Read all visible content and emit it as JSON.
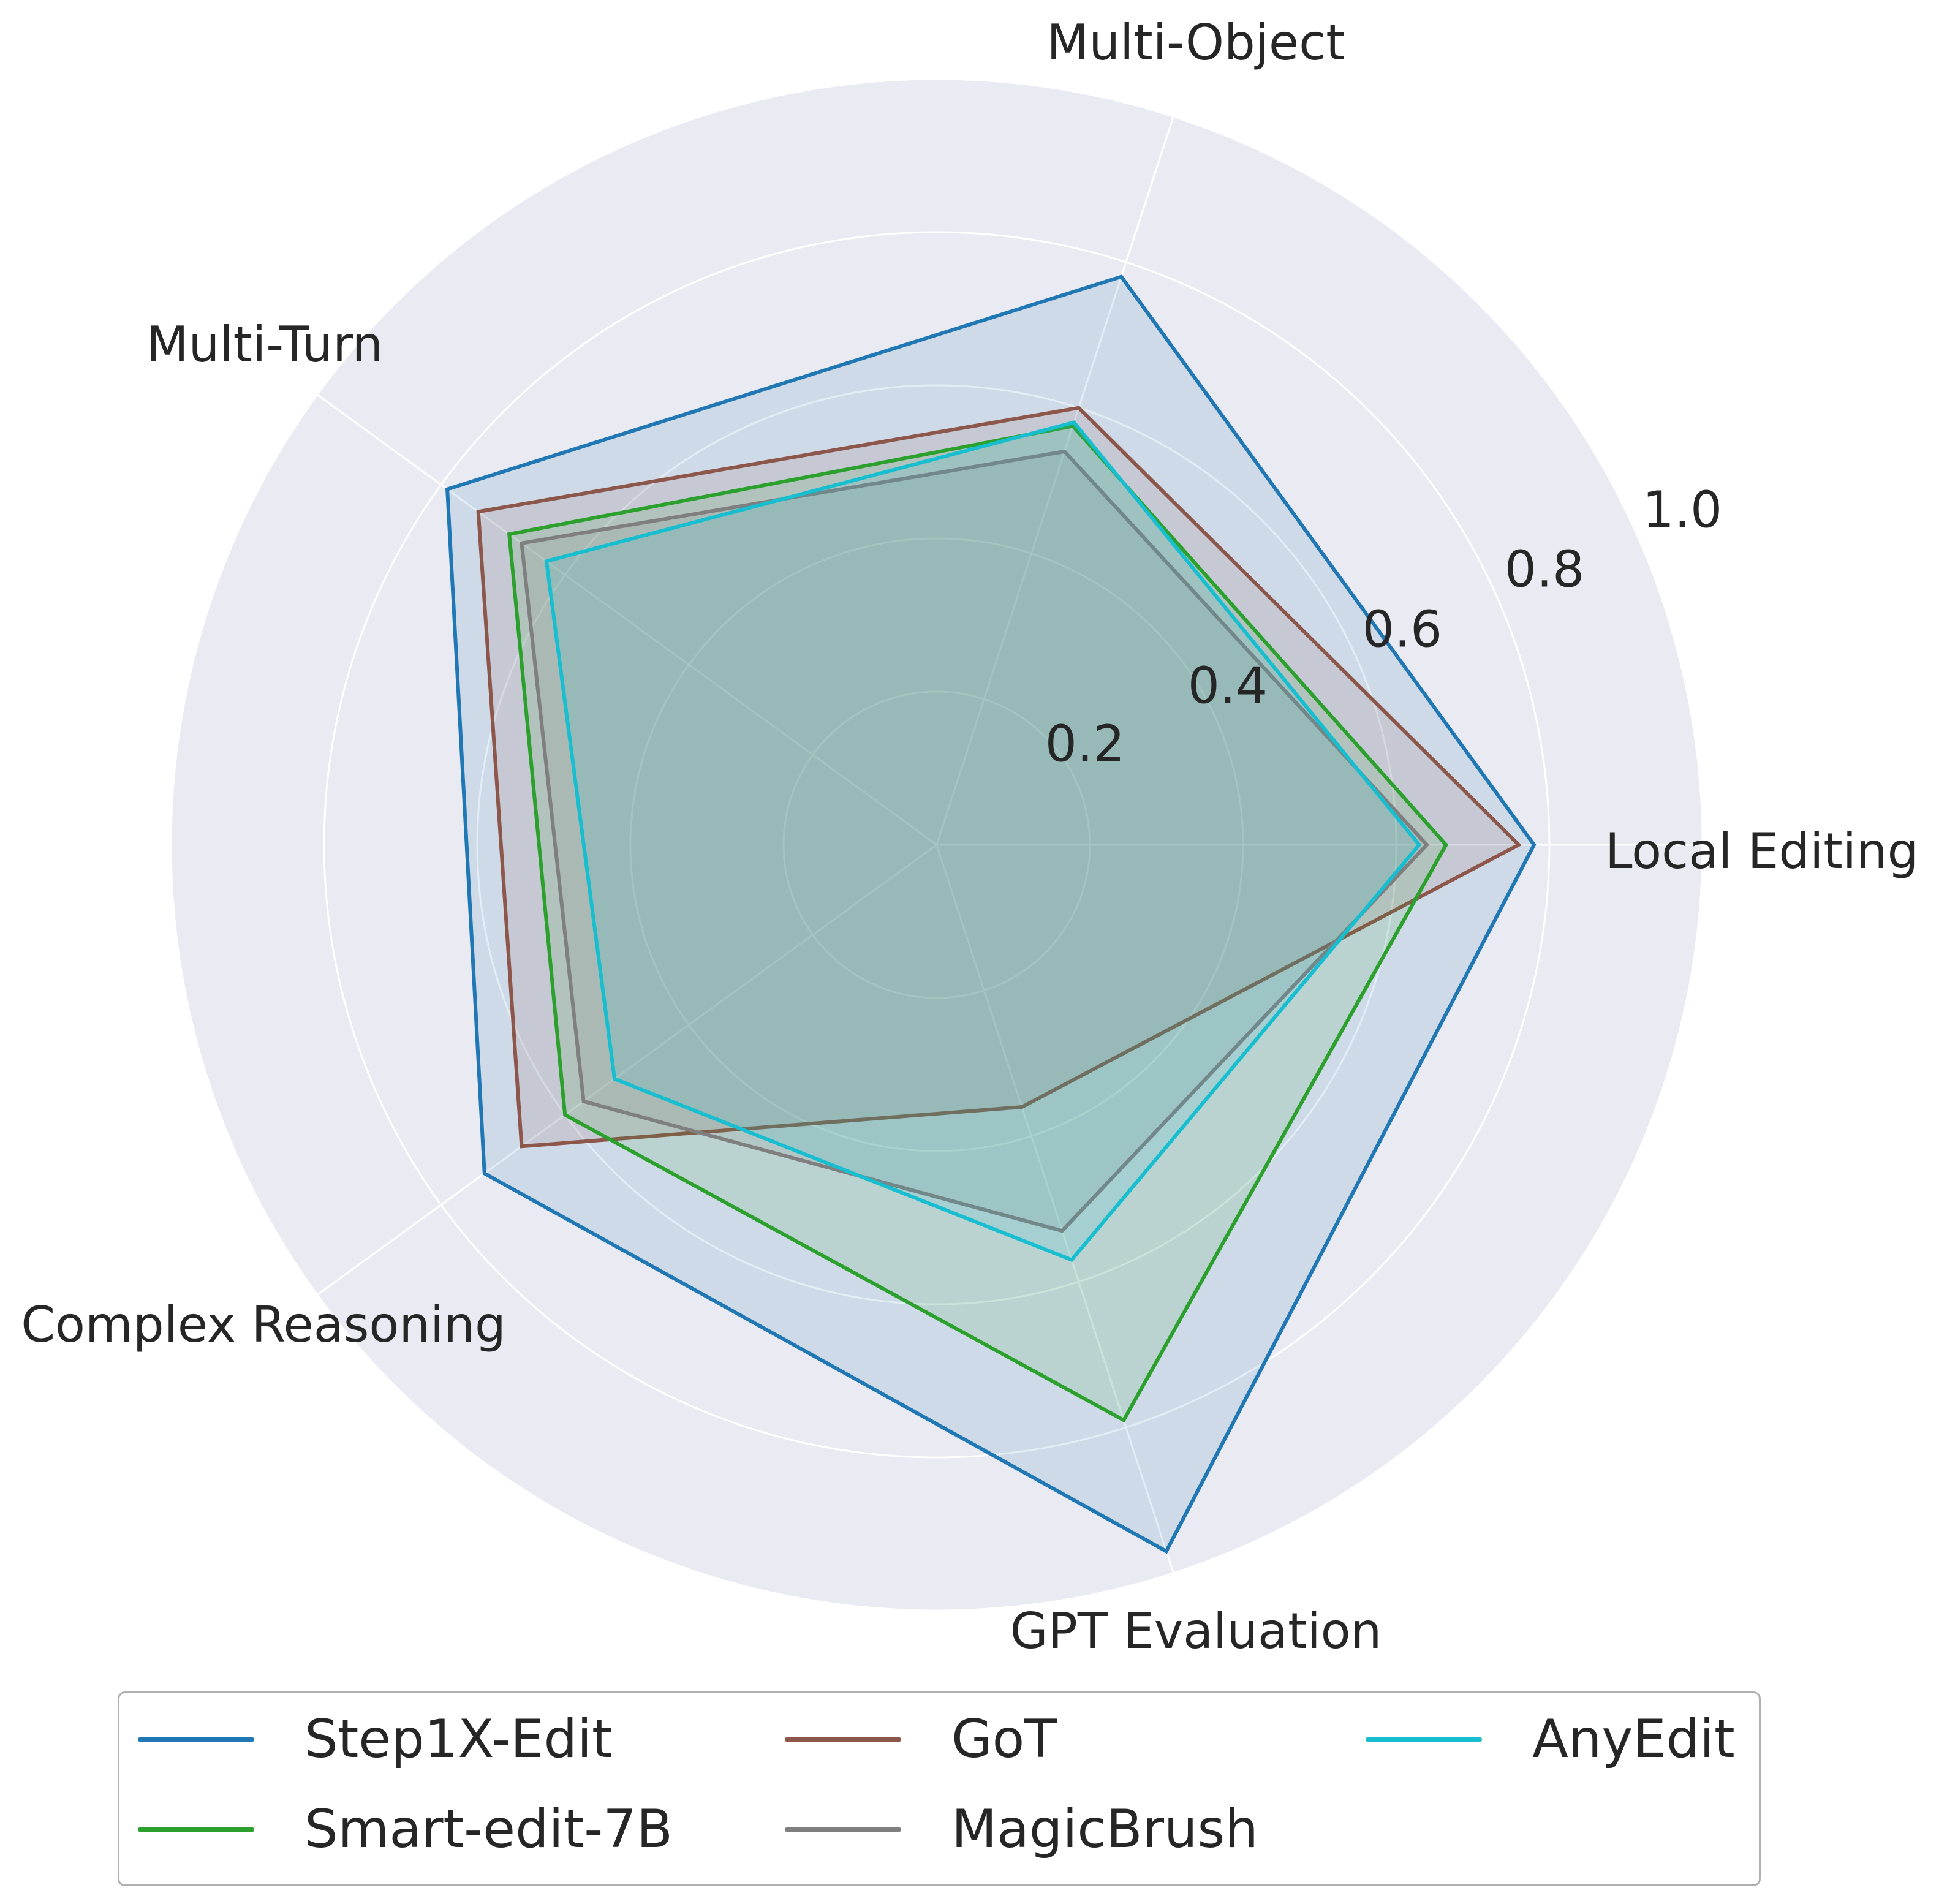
{
  "chart_data": {
    "type": "radar",
    "axes": [
      "Local Editing",
      "Multi-Object",
      "Multi-Turn",
      "Complex Reasoning",
      "GPT Evaluation"
    ],
    "rlim": [
      0,
      1.0
    ],
    "rticks": [
      0.2,
      0.4,
      0.6,
      0.8,
      1.0
    ],
    "rtick_labels": [
      "0.2",
      "0.4",
      "0.6",
      "0.8",
      "1.0"
    ],
    "grid": true,
    "legend_position": "bottom",
    "series": [
      {
        "name": "Step1X-Edit",
        "color": "#1f77b4",
        "values": [
          0.78,
          0.78,
          0.79,
          0.73,
          0.97
        ]
      },
      {
        "name": "GoT",
        "color": "#8c564b",
        "values": [
          0.76,
          0.6,
          0.74,
          0.67,
          0.36
        ]
      },
      {
        "name": "AnyEdit",
        "color": "#17becf",
        "values": [
          0.63,
          0.58,
          0.63,
          0.52,
          0.57
        ]
      },
      {
        "name": "Smart-edit-7B",
        "color": "#2ca02c",
        "values": [
          0.665,
          0.575,
          0.69,
          0.6,
          0.79
        ]
      },
      {
        "name": "MagicBrush",
        "color": "#7f7f7f",
        "values": [
          0.64,
          0.54,
          0.67,
          0.57,
          0.53
        ]
      }
    ]
  }
}
